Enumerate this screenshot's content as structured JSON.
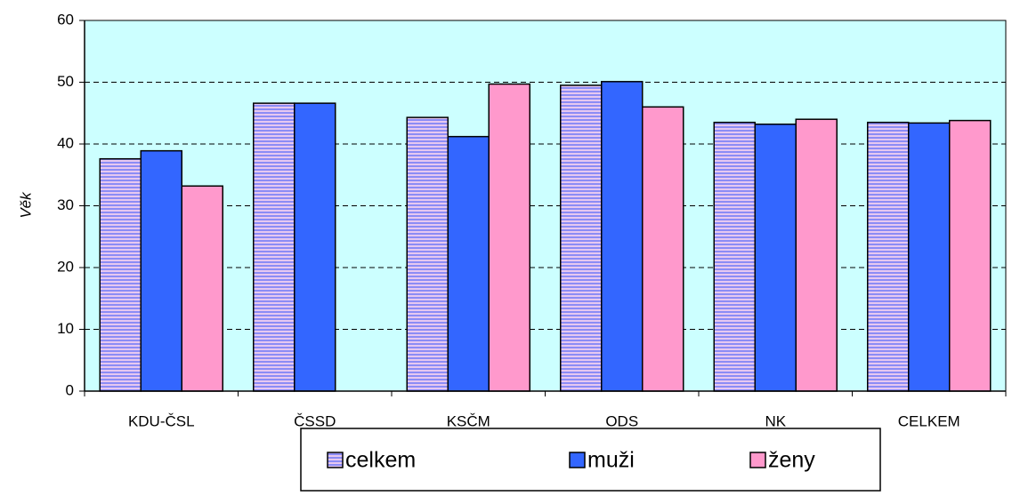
{
  "chart_data": {
    "type": "bar",
    "y_label": "Věk",
    "categories": [
      "KDU-ČSL",
      "ČSSD",
      "KSČM",
      "ODS",
      "NK",
      "CELKEM"
    ],
    "series": [
      {
        "name": "celkem",
        "color": "#9999ff",
        "hatch": "horizontal",
        "values": [
          37.6,
          46.6,
          44.3,
          49.5,
          43.5,
          43.5
        ]
      },
      {
        "name": "muži",
        "color": "#3366ff",
        "values": [
          38.9,
          46.6,
          41.2,
          50.1,
          43.2,
          43.4
        ]
      },
      {
        "name": "ženy",
        "color": "#ff99cc",
        "values": [
          33.2,
          null,
          49.7,
          46.0,
          44.0,
          43.8
        ]
      }
    ],
    "ylim": [
      0,
      60
    ],
    "yticks": [
      0,
      10,
      20,
      30,
      40,
      50,
      60
    ],
    "grid": true,
    "plot_background": "#ccffff",
    "legend": "bottom"
  }
}
